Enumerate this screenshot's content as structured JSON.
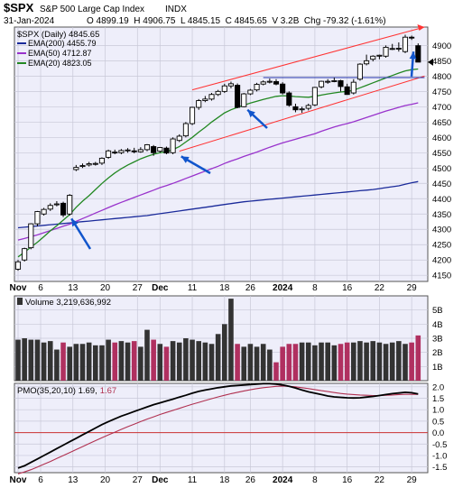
{
  "header": {
    "symbol": "$SPX",
    "name": "S&P 500 Large Cap Index",
    "exchange": "INDX",
    "date": "31-Jan-2024",
    "quote": "O 4899.19  H 4906.75  L 4845.15  C 4845.65  V 3.2B  Chg -79.32 (-1.61%)"
  },
  "colors": {
    "panel_bg": "#eeeefa",
    "grid": "#c8c8d8",
    "up_candle": "#ffffff",
    "down_candle": "#000000",
    "ema200": "#1a2a9a",
    "ema50": "#9933cc",
    "ema20": "#228822",
    "channel": "#ff3333",
    "resistance": "#2233aa",
    "volume_up": "#333333",
    "volume_down": "#b03060",
    "pmo": "#000000",
    "pmo_signal": "#b03050",
    "arrow": "#1155cc",
    "zero_line": "#cc3333"
  },
  "chart_data": [
    {
      "type": "candlestick",
      "title": "$SPX (Daily) 4845.65",
      "legend": [
        {
          "name": "EMA(200) 4455.79",
          "color": "#1a2a9a"
        },
        {
          "name": "EMA(50) 4712.87",
          "color": "#9933cc"
        },
        {
          "name": "EMA(20) 4823.05",
          "color": "#228822"
        }
      ],
      "ylim": [
        4130,
        4960
      ],
      "yticks": [
        4150,
        4200,
        4250,
        4300,
        4350,
        4400,
        4450,
        4500,
        4550,
        4600,
        4650,
        4700,
        4750,
        4800,
        4850,
        4900
      ],
      "xticks": [
        "Nov",
        "6",
        "13",
        "20",
        "27",
        "Dec",
        "11",
        "18",
        "26",
        "2024",
        "8",
        "16",
        "22",
        "29"
      ],
      "last_close": 4845.65,
      "ohlc": [
        [
          4170,
          4200,
          4165,
          4194
        ],
        [
          4200,
          4240,
          4195,
          4237
        ],
        [
          4240,
          4320,
          4235,
          4318
        ],
        [
          4318,
          4360,
          4310,
          4358
        ],
        [
          4350,
          4370,
          4345,
          4365
        ],
        [
          4366,
          4385,
          4360,
          4378
        ],
        [
          4380,
          4392,
          4375,
          4383
        ],
        [
          4385,
          4390,
          4340,
          4347
        ],
        [
          4350,
          4415,
          4345,
          4411
        ],
        [
          4495,
          4510,
          4490,
          4502
        ],
        [
          4505,
          4515,
          4500,
          4508
        ],
        [
          4510,
          4520,
          4505,
          4514
        ],
        [
          4512,
          4520,
          4508,
          4515
        ],
        [
          4516,
          4535,
          4510,
          4532
        ],
        [
          4535,
          4560,
          4530,
          4556
        ],
        [
          4552,
          4560,
          4545,
          4550
        ],
        [
          4550,
          4562,
          4545,
          4557
        ],
        [
          4557,
          4565,
          4550,
          4559
        ],
        [
          4556,
          4566,
          4548,
          4554
        ],
        [
          4553,
          4568,
          4550,
          4560
        ],
        [
          4560,
          4578,
          4555,
          4576
        ],
        [
          4570,
          4575,
          4540,
          4550
        ],
        [
          4555,
          4568,
          4550,
          4567
        ],
        [
          4565,
          4570,
          4545,
          4549
        ],
        [
          4550,
          4600,
          4545,
          4595
        ],
        [
          4590,
          4610,
          4585,
          4604
        ],
        [
          4605,
          4650,
          4600,
          4645
        ],
        [
          4645,
          4700,
          4640,
          4698
        ],
        [
          4698,
          4725,
          4690,
          4720
        ],
        [
          4720,
          4735,
          4715,
          4725
        ],
        [
          4725,
          4745,
          4720,
          4740
        ],
        [
          4740,
          4755,
          4735,
          4750
        ],
        [
          4750,
          4775,
          4745,
          4768
        ],
        [
          4768,
          4782,
          4760,
          4775
        ],
        [
          4770,
          4776,
          4695,
          4698
        ],
        [
          4700,
          4745,
          4698,
          4742
        ],
        [
          4742,
          4758,
          4738,
          4754
        ],
        [
          4755,
          4778,
          4750,
          4773
        ],
        [
          4774,
          4786,
          4770,
          4781
        ],
        [
          4781,
          4792,
          4776,
          4783
        ],
        [
          4782,
          4790,
          4770,
          4774
        ],
        [
          4774,
          4780,
          4740,
          4745
        ],
        [
          4745,
          4750,
          4700,
          4705
        ],
        [
          4700,
          4710,
          4682,
          4690
        ],
        [
          4692,
          4700,
          4680,
          4693
        ],
        [
          4695,
          4710,
          4688,
          4704
        ],
        [
          4706,
          4765,
          4702,
          4763
        ],
        [
          4765,
          4785,
          4760,
          4783
        ],
        [
          4783,
          4790,
          4775,
          4783
        ],
        [
          4783,
          4795,
          4780,
          4785
        ],
        [
          4785,
          4788,
          4750,
          4766
        ],
        [
          4765,
          4775,
          4740,
          4740
        ],
        [
          4745,
          4790,
          4740,
          4780
        ],
        [
          4790,
          4842,
          4785,
          4839
        ],
        [
          4840,
          4870,
          4835,
          4850
        ],
        [
          4855,
          4868,
          4848,
          4865
        ],
        [
          4865,
          4870,
          4855,
          4868
        ],
        [
          4865,
          4900,
          4860,
          4894
        ],
        [
          4890,
          4905,
          4885,
          4890
        ],
        [
          4888,
          4910,
          4880,
          4891
        ],
        [
          4880,
          4935,
          4875,
          4927
        ],
        [
          4927,
          4932,
          4918,
          4924
        ],
        [
          4899.19,
          4906.75,
          4845.15,
          4845.65
        ]
      ],
      "ema20": [
        4210,
        4225,
        4242,
        4258,
        4276,
        4295,
        4312,
        4330,
        4348,
        4372,
        4392,
        4410,
        4430,
        4450,
        4468,
        4484,
        4498,
        4510,
        4520,
        4530,
        4538,
        4545,
        4550,
        4553,
        4560,
        4570,
        4585,
        4600,
        4617,
        4633,
        4650,
        4665,
        4680,
        4690,
        4698,
        4705,
        4712,
        4718,
        4724,
        4729,
        4734,
        4736,
        4735,
        4733,
        4732,
        4731,
        4734,
        4738,
        4742,
        4745,
        4748,
        4750,
        4754,
        4762,
        4770,
        4778,
        4786,
        4794,
        4802,
        4810,
        4817,
        4821,
        4823.05
      ],
      "ema50": [
        4265,
        4270,
        4276,
        4282,
        4289,
        4296,
        4303,
        4310,
        4317,
        4326,
        4335,
        4344,
        4353,
        4362,
        4371,
        4380,
        4388,
        4396,
        4404,
        4412,
        4420,
        4428,
        4436,
        4443,
        4450,
        4458,
        4466,
        4474,
        4482,
        4490,
        4498,
        4506,
        4515,
        4523,
        4530,
        4538,
        4545,
        4552,
        4560,
        4568,
        4575,
        4582,
        4588,
        4594,
        4600,
        4606,
        4612,
        4620,
        4627,
        4634,
        4640,
        4645,
        4651,
        4658,
        4665,
        4672,
        4679,
        4686,
        4692,
        4698,
        4704,
        4708,
        4712.87
      ],
      "ema200": [
        4305,
        4307,
        4309,
        4311,
        4313,
        4315,
        4317,
        4319,
        4321,
        4323,
        4325,
        4327,
        4329,
        4331,
        4333,
        4335,
        4337,
        4339,
        4341,
        4343,
        4345,
        4348,
        4351,
        4354,
        4357,
        4360,
        4363,
        4366,
        4369,
        4372,
        4375,
        4378,
        4381,
        4384,
        4387,
        4390,
        4392,
        4394,
        4396,
        4398,
        4400,
        4402,
        4404,
        4406,
        4408,
        4410,
        4412,
        4414,
        4416,
        4418,
        4420,
        4422,
        4424,
        4426,
        4428,
        4430,
        4433,
        4436,
        4439,
        4442,
        4447,
        4452,
        4455.79
      ],
      "channel_upper": [
        [
          27,
          4755
        ],
        [
          63,
          4960
        ]
      ],
      "channel_lower": [
        [
          25,
          4555
        ],
        [
          63,
          4800
        ]
      ],
      "resistance_line": [
        [
          38,
          4795
        ],
        [
          63,
          4795
        ]
      ]
    },
    {
      "type": "bar",
      "title": "Volume 3,219,636,992",
      "ylim": [
        0,
        6
      ],
      "yticks_labels": [
        "1B",
        "2B",
        "3B",
        "4B",
        "5B"
      ],
      "yticks": [
        1,
        2,
        3,
        4,
        5
      ],
      "values": [
        2.9,
        3.0,
        2.9,
        2.9,
        2.7,
        2.8,
        2.2,
        2.7,
        2.4,
        2.6,
        2.6,
        2.7,
        2.5,
        2.5,
        2.9,
        2.7,
        2.8,
        2.7,
        2.8,
        2.4,
        3.6,
        2.9,
        2.6,
        2.4,
        2.8,
        2.7,
        3.0,
        2.9,
        2.8,
        2.7,
        2.6,
        3.3,
        4.0,
        5.8,
        2.6,
        2.4,
        2.6,
        2.4,
        2.6,
        2.2,
        1.3,
        2.4,
        2.6,
        2.6,
        2.7,
        2.7,
        2.5,
        2.7,
        2.7,
        2.5,
        2.6,
        2.7,
        2.7,
        2.8,
        2.7,
        2.8,
        2.7,
        2.6,
        2.7,
        2.8,
        2.6,
        2.7,
        3.2
      ]
    },
    {
      "type": "line",
      "title": "PMO(35,20,10) 1.69, 1.67",
      "ylim": [
        -1.75,
        2.15
      ],
      "yticks": [
        -1.5,
        -1.0,
        -0.5,
        0.0,
        0.5,
        1.0,
        1.5,
        2.0
      ],
      "series": [
        {
          "name": "1.69",
          "values": [
            -1.55,
            -1.45,
            -1.3,
            -1.15,
            -1.0,
            -0.85,
            -0.7,
            -0.55,
            -0.4,
            -0.25,
            -0.1,
            0.05,
            0.2,
            0.35,
            0.48,
            0.6,
            0.72,
            0.82,
            0.92,
            1.02,
            1.12,
            1.22,
            1.3,
            1.38,
            1.46,
            1.55,
            1.63,
            1.72,
            1.8,
            1.86,
            1.91,
            1.96,
            2.0,
            2.04,
            2.06,
            2.08,
            2.1,
            2.12,
            2.14,
            2.14,
            2.12,
            2.08,
            2.02,
            1.95,
            1.86,
            1.78,
            1.72,
            1.66,
            1.6,
            1.56,
            1.54,
            1.52,
            1.51,
            1.52,
            1.55,
            1.58,
            1.62,
            1.66,
            1.7,
            1.73,
            1.76,
            1.74,
            1.69
          ]
        },
        {
          "name": "1.67",
          "values": [
            -1.8,
            -1.72,
            -1.62,
            -1.5,
            -1.38,
            -1.26,
            -1.13,
            -1.0,
            -0.87,
            -0.74,
            -0.61,
            -0.48,
            -0.35,
            -0.22,
            -0.1,
            0.02,
            0.14,
            0.26,
            0.37,
            0.48,
            0.59,
            0.69,
            0.79,
            0.88,
            0.97,
            1.06,
            1.15,
            1.24,
            1.32,
            1.4,
            1.48,
            1.56,
            1.63,
            1.7,
            1.76,
            1.82,
            1.87,
            1.92,
            1.96,
            1.99,
            2.02,
            2.03,
            2.02,
            2.0,
            1.96,
            1.92,
            1.88,
            1.83,
            1.79,
            1.75,
            1.71,
            1.68,
            1.66,
            1.64,
            1.63,
            1.62,
            1.62,
            1.63,
            1.64,
            1.66,
            1.67,
            1.67,
            1.67
          ]
        }
      ]
    }
  ]
}
